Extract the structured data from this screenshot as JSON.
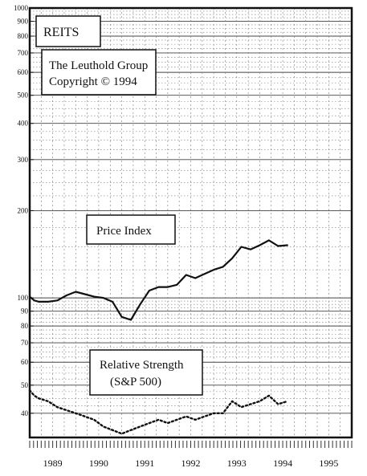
{
  "chart_data": {
    "type": "line",
    "y_scale": "log",
    "ylim": [
      33,
      1000
    ],
    "y_ticks": [
      {
        "v": 1000,
        "label": "1000"
      },
      {
        "v": 900,
        "label": "900"
      },
      {
        "v": 800,
        "label": "800"
      },
      {
        "v": 700,
        "label": "700"
      },
      {
        "v": 600,
        "label": "600"
      },
      {
        "v": 500,
        "label": "500"
      },
      {
        "v": 400,
        "label": "400"
      },
      {
        "v": 300,
        "label": "300"
      },
      {
        "v": 200,
        "label": "200"
      },
      {
        "v": 100,
        "label": "100"
      },
      {
        "v": 90,
        "label": "90"
      },
      {
        "v": 80,
        "label": "80"
      },
      {
        "v": 70,
        "label": "70"
      },
      {
        "v": 60,
        "label": "60"
      },
      {
        "v": 50,
        "label": "50"
      },
      {
        "v": 40,
        "label": "40"
      }
    ],
    "xlim": [
      1989,
      1996
    ],
    "x_ticks": [
      {
        "v": 1989.5,
        "label": "1989"
      },
      {
        "v": 1990.5,
        "label": "1990"
      },
      {
        "v": 1991.5,
        "label": "1991"
      },
      {
        "v": 1992.5,
        "label": "1992"
      },
      {
        "v": 1993.5,
        "label": "1993"
      },
      {
        "v": 1994.5,
        "label": "1994"
      },
      {
        "v": 1995.5,
        "label": "1995"
      }
    ],
    "grid": true,
    "annotations": {
      "title": "REITS",
      "source_line1": "The Leuthold Group",
      "source_line2": "Copyright © 1994",
      "price_label": "Price Index",
      "rs_label_line1": "Relative Strength",
      "rs_label_line2": "(S&P 500)"
    },
    "series": [
      {
        "key": "price",
        "style": "solid",
        "x": [
          1989.0,
          1989.1,
          1989.2,
          1989.4,
          1989.6,
          1989.8,
          1990.0,
          1990.2,
          1990.4,
          1990.6,
          1990.8,
          1991.0,
          1991.2,
          1991.4,
          1991.6,
          1991.8,
          1992.0,
          1992.2,
          1992.4,
          1992.6,
          1992.8,
          1993.0,
          1993.2,
          1993.4,
          1993.6,
          1993.8,
          1994.0,
          1994.2,
          1994.4,
          1994.6
        ],
        "y": [
          101,
          98,
          97,
          97,
          98,
          102,
          105,
          103,
          101,
          100,
          97,
          86,
          84,
          95,
          106,
          109,
          109,
          111,
          120,
          117,
          121,
          125,
          128,
          137,
          150,
          147,
          152,
          158,
          151,
          152
        ]
      },
      {
        "key": "relative_strength",
        "style": "dotted",
        "x": [
          1989.0,
          1989.1,
          1989.2,
          1989.4,
          1989.6,
          1989.8,
          1990.0,
          1990.2,
          1990.4,
          1990.6,
          1990.8,
          1991.0,
          1991.2,
          1991.4,
          1991.6,
          1991.8,
          1992.0,
          1992.2,
          1992.4,
          1992.6,
          1992.8,
          1993.0,
          1993.2,
          1993.4,
          1993.6,
          1993.8,
          1994.0,
          1994.2,
          1994.4,
          1994.6
        ],
        "y": [
          48,
          46,
          45,
          44,
          42,
          41,
          40,
          39,
          38,
          36,
          35,
          34,
          35,
          36,
          37,
          38,
          37,
          38,
          39,
          38,
          39,
          40,
          40,
          44,
          42,
          43,
          44,
          46,
          43,
          44
        ]
      }
    ]
  }
}
